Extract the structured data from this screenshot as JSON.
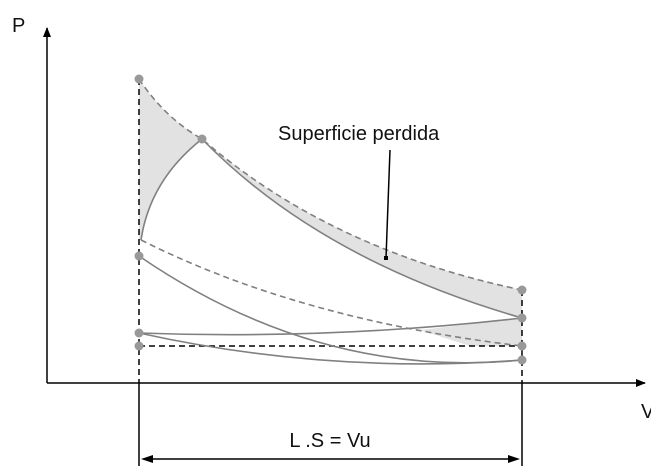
{
  "labels": {
    "y_axis": "P",
    "x_axis": "V",
    "annotation": "Superficie perdida",
    "dimension": "L .S = Vu"
  }
}
